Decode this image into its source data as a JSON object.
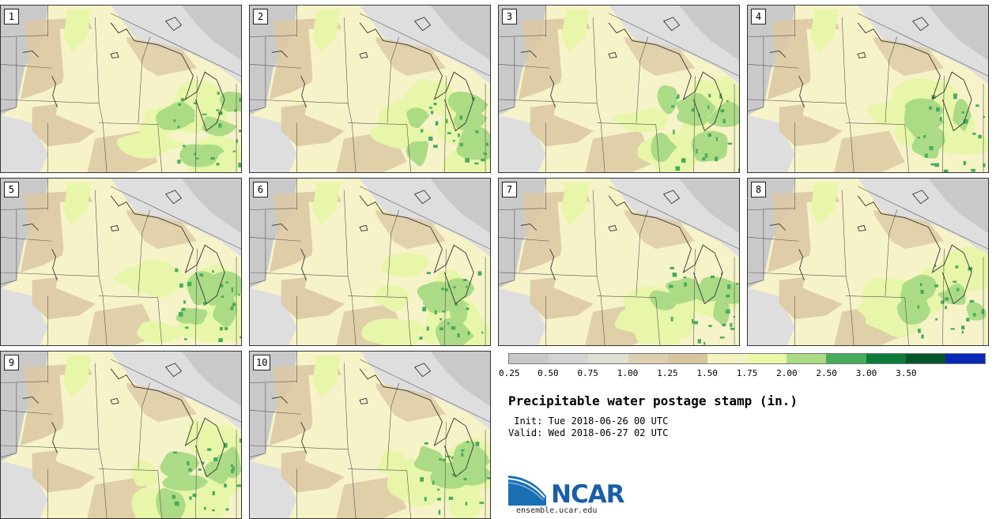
{
  "title": "Precipitable water postage stamp (in.)",
  "init_line": " Init: Tue 2018-06-26 00 UTC",
  "valid_line": "Valid: Wed 2018-06-27 02 UTC",
  "panels": [
    {
      "label": "1"
    },
    {
      "label": "2"
    },
    {
      "label": "3"
    },
    {
      "label": "4"
    },
    {
      "label": "5"
    },
    {
      "label": "6"
    },
    {
      "label": "7"
    },
    {
      "label": "8"
    },
    {
      "label": "9"
    },
    {
      "label": "10"
    }
  ],
  "colorbar": {
    "ticks": [
      "0.25",
      "0.50",
      "0.75",
      "1.00",
      "1.25",
      "1.50",
      "1.75",
      "2.00",
      "2.50",
      "3.00",
      "3.50"
    ],
    "colors": [
      "#c8c8c8",
      "#d3d3d3",
      "#dfdfd2",
      "#ddd0b0",
      "#d8c6a2",
      "#f5f2c2",
      "#e9f7a6",
      "#acdb86",
      "#46ac5c",
      "#0e7a3a",
      "#05552a",
      "#0a28b8"
    ]
  },
  "logo": {
    "text": "NCAR",
    "url": "ensemble.ucar.edu"
  },
  "map_colors": {
    "base": "#f7f3c9",
    "tan": "#dcc9a4",
    "gray": "#c9c9c9",
    "light_gray": "#dedede",
    "light_green": "#e7f6a9",
    "green": "#acdb86",
    "dark_green": "#46ac5c"
  }
}
